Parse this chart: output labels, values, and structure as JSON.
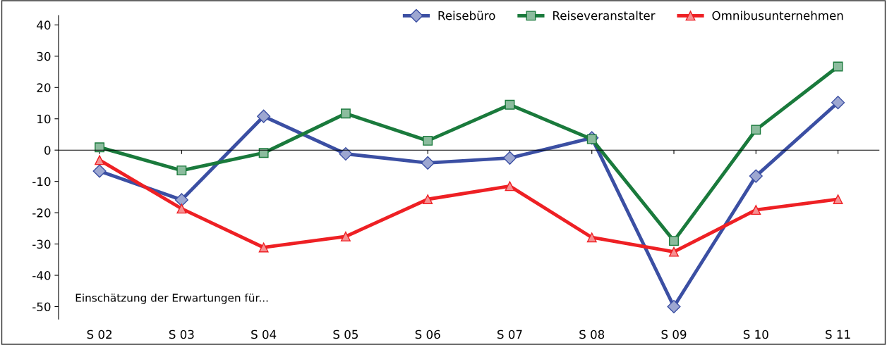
{
  "chart_data": {
    "type": "line",
    "categories": [
      "S 02",
      "S 03",
      "S 04",
      "S 05",
      "S 06",
      "S 07",
      "S 08",
      "S 09",
      "S 10",
      "S 11"
    ],
    "series": [
      {
        "name": "Reisebüro",
        "color": "#3b4fa3",
        "marker": "diamond",
        "values": [
          -6.7,
          -15.9,
          10.8,
          -1.2,
          -4.1,
          -2.5,
          3.9,
          -50,
          -8.3,
          15.2
        ]
      },
      {
        "name": "Reiseveranstalter",
        "color": "#1a7a3c",
        "marker": "square",
        "values": [
          0.9,
          -6.5,
          -0.9,
          11.7,
          3.0,
          14.5,
          3.5,
          -29,
          6.5,
          26.7
        ]
      },
      {
        "name": "Omnibusunternehmen",
        "color": "#ee2024",
        "marker": "triangle",
        "values": [
          -3.2,
          -18.7,
          -31.1,
          -27.6,
          -15.7,
          -11.5,
          -27.9,
          -32.5,
          -19.1,
          -15.7
        ]
      }
    ],
    "ylim": [
      -54,
      43
    ],
    "yticks": [
      -50,
      -40,
      -30,
      -20,
      -10,
      0,
      10,
      20,
      30,
      40
    ],
    "legend": "top right",
    "annotations": [
      "Einschätzung der Erwartungen für..."
    ]
  }
}
